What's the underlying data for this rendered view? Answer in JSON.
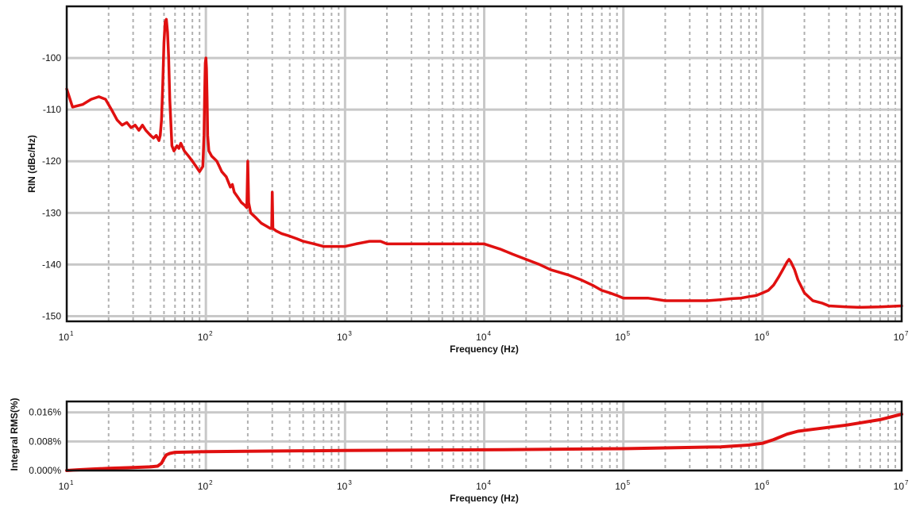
{
  "chart_data": [
    {
      "type": "line",
      "title": "",
      "xlabel": "Frequency (Hz)",
      "ylabel": "RIN (dBc/Hz)",
      "x_scale": "log",
      "xlim": [
        10,
        10000000
      ],
      "ylim": [
        -151,
        -90
      ],
      "x_ticks": [
        {
          "base": "10",
          "exp": "1"
        },
        {
          "base": "10",
          "exp": "2"
        },
        {
          "base": "10",
          "exp": "3"
        },
        {
          "base": "10",
          "exp": "4"
        },
        {
          "base": "10",
          "exp": "5"
        },
        {
          "base": "10",
          "exp": "6"
        },
        {
          "base": "10",
          "exp": "7"
        }
      ],
      "y_ticks": [
        "-100",
        "-110",
        "-120",
        "-130",
        "-140",
        "-150"
      ],
      "grid": true,
      "line_color": "#e01010",
      "series": [
        {
          "x": [
            10,
            11,
            13,
            15,
            17,
            19,
            21,
            23,
            25,
            27,
            29,
            31,
            33,
            35,
            37,
            40,
            42,
            44,
            46,
            47,
            48,
            49,
            50,
            51,
            52,
            53,
            54,
            55,
            57,
            59,
            62,
            64,
            66,
            70,
            75,
            80,
            85,
            90,
            95,
            97,
            98,
            99,
            100,
            101,
            102,
            103,
            105,
            110,
            115,
            120,
            125,
            130,
            140,
            145,
            150,
            155,
            160,
            170,
            180,
            190,
            197,
            200,
            203,
            210,
            230,
            250,
            270,
            290,
            297,
            300,
            303,
            320,
            350,
            400,
            450,
            500,
            600,
            700,
            800,
            900,
            1000,
            1200,
            1500,
            1800,
            2000,
            2500,
            3000,
            4000,
            5000,
            6000,
            7000,
            8000,
            10000,
            13000,
            16000,
            20000,
            25000,
            30000,
            40000,
            50000,
            60000,
            70000,
            80000,
            90000,
            100000,
            120000,
            150000,
            200000,
            300000,
            400000,
            500000,
            600000,
            700000,
            800000,
            900000,
            1000000,
            1100000,
            1200000,
            1300000,
            1400000,
            1500000,
            1550000,
            1600000,
            1700000,
            1800000,
            2000000,
            2300000,
            2700000,
            3000000,
            4000000,
            5000000,
            7000000,
            10000000
          ],
          "y": [
            -106,
            -109.5,
            -109,
            -108,
            -107.5,
            -108,
            -110,
            -112,
            -113,
            -112.5,
            -113.5,
            -113,
            -114,
            -113,
            -114,
            -115,
            -115.5,
            -115,
            -116,
            -115,
            -112,
            -105,
            -97,
            -93,
            -92.5,
            -95,
            -100,
            -108,
            -117,
            -118,
            -117,
            -117.5,
            -116.5,
            -118,
            -119,
            -120,
            -121,
            -122,
            -121,
            -115,
            -107,
            -101,
            -100,
            -102,
            -108,
            -115,
            -118,
            -119,
            -119.5,
            -120,
            -121,
            -122,
            -123,
            -124,
            -125,
            -124.5,
            -126,
            -127,
            -128,
            -128.5,
            -129,
            -120,
            -128,
            -130,
            -131,
            -132,
            -132.5,
            -133,
            -133,
            -126,
            -133,
            -133.5,
            -134,
            -134.5,
            -135,
            -135.5,
            -136,
            -136.5,
            -136.5,
            -136.5,
            -136.5,
            -136,
            -135.5,
            -135.5,
            -136,
            -136,
            -136,
            -136,
            -136,
            -136,
            -136,
            -136,
            -136,
            -137,
            -138,
            -139,
            -140,
            -141,
            -142,
            -143,
            -144,
            -145,
            -145.5,
            -146,
            -146.5,
            -146.5,
            -146.5,
            -147,
            -147,
            -147,
            -146.8,
            -146.6,
            -146.5,
            -146.2,
            -146,
            -145.5,
            -145,
            -144,
            -142.5,
            -141,
            -139.5,
            -139,
            -139.5,
            -141,
            -143,
            -145.5,
            -147,
            -147.5,
            -148,
            -148.2,
            -148.3,
            -148.2,
            -148
          ]
        }
      ]
    },
    {
      "type": "line",
      "title": "",
      "xlabel": "Frequency (Hz)",
      "ylabel": "Integral RMS(%)",
      "x_scale": "log",
      "xlim": [
        10,
        10000000
      ],
      "ylim": [
        0,
        0.019
      ],
      "x_ticks": [
        {
          "base": "10",
          "exp": "1"
        },
        {
          "base": "10",
          "exp": "2"
        },
        {
          "base": "10",
          "exp": "3"
        },
        {
          "base": "10",
          "exp": "4"
        },
        {
          "base": "10",
          "exp": "5"
        },
        {
          "base": "10",
          "exp": "6"
        },
        {
          "base": "10",
          "exp": "7"
        }
      ],
      "y_ticks": [
        "0.016%",
        "0.008%",
        "0.000%"
      ],
      "y_tick_values": [
        0.016,
        0.008,
        0
      ],
      "grid": true,
      "line_color": "#e01010",
      "series": [
        {
          "x": [
            10,
            12,
            15,
            20,
            30,
            40,
            45,
            48,
            50,
            52,
            55,
            60,
            80,
            100,
            200,
            1000,
            10000,
            100000,
            500000,
            800000,
            1000000,
            1200000,
            1500000,
            1800000,
            2500000,
            4000000,
            7000000,
            10000000
          ],
          "y": [
            0,
            0.0002,
            0.0004,
            0.0006,
            0.0008,
            0.001,
            0.0012,
            0.002,
            0.0033,
            0.0043,
            0.0047,
            0.005,
            0.0051,
            0.0052,
            0.0053,
            0.0055,
            0.0057,
            0.006,
            0.0065,
            0.007,
            0.0075,
            0.0085,
            0.01,
            0.0108,
            0.0115,
            0.0125,
            0.014,
            0.0155
          ]
        }
      ]
    }
  ]
}
